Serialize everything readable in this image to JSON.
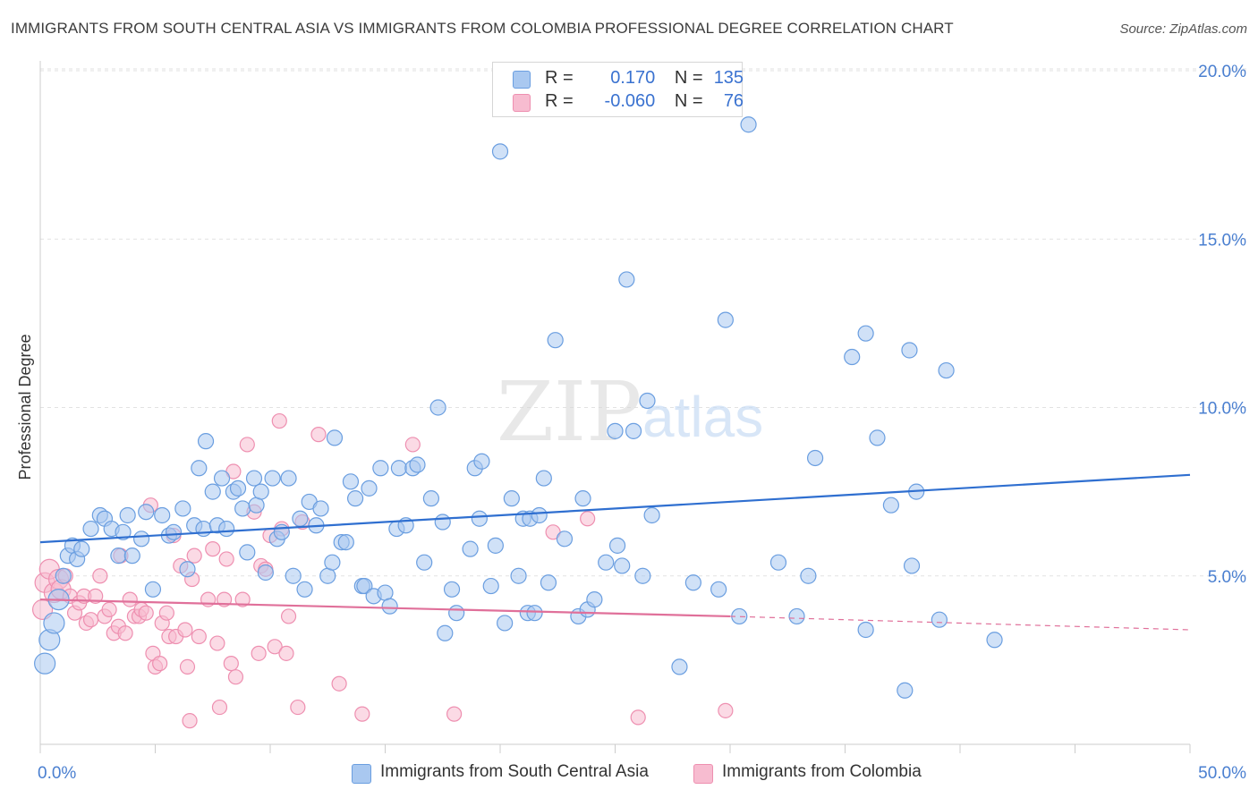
{
  "title": "IMMIGRANTS FROM SOUTH CENTRAL ASIA VS IMMIGRANTS FROM COLOMBIA PROFESSIONAL DEGREE CORRELATION CHART",
  "source": "Source: ZipAtlas.com",
  "watermark": {
    "zip": "ZIP",
    "atlas": "atlas"
  },
  "legend": {
    "r_label": "R =",
    "n_label": "N =",
    "series1": {
      "r": "0.170",
      "n": "135"
    },
    "series2": {
      "r": "-0.060",
      "n": "76"
    }
  },
  "colors": {
    "blue_fill": "#a9c8f0",
    "blue_stroke": "#6a9ee0",
    "blue_line": "#2f6fd0",
    "pink_fill": "#f7bcd0",
    "pink_stroke": "#ee8fb0",
    "pink_line": "#e0709a",
    "grid": "#e2e2e2",
    "tick_text": "#4a7fd0"
  },
  "chart_data": {
    "type": "scatter",
    "title": "IMMIGRANTS FROM SOUTH CENTRAL ASIA VS IMMIGRANTS FROM COLOMBIA PROFESSIONAL DEGREE CORRELATION CHART",
    "xlabel": "",
    "ylabel": "Professional Degree",
    "xlim": [
      0,
      50
    ],
    "ylim": [
      0,
      20
    ],
    "x_ticks_labels": [
      "0.0%",
      "50.0%"
    ],
    "y_ticks": [
      5,
      10,
      15,
      20
    ],
    "y_ticks_labels": [
      "5.0%",
      "10.0%",
      "15.0%",
      "20.0%"
    ],
    "series": [
      {
        "name": "Immigrants from South Central Asia",
        "color": "#6a9ee0",
        "r": 0.17,
        "n": 135,
        "trend": {
          "x": [
            0,
            50
          ],
          "y": [
            6.0,
            8.0
          ]
        },
        "points": [
          [
            0.2,
            2.4
          ],
          [
            0.4,
            3.1
          ],
          [
            0.6,
            3.6
          ],
          [
            0.8,
            4.3
          ],
          [
            1.0,
            5.0
          ],
          [
            1.2,
            5.6
          ],
          [
            1.4,
            5.9
          ],
          [
            1.6,
            5.5
          ],
          [
            1.8,
            5.8
          ],
          [
            2.2,
            6.4
          ],
          [
            2.6,
            6.8
          ],
          [
            2.8,
            6.7
          ],
          [
            3.1,
            6.4
          ],
          [
            3.4,
            5.6
          ],
          [
            3.6,
            6.3
          ],
          [
            3.8,
            6.8
          ],
          [
            4.0,
            5.6
          ],
          [
            4.4,
            6.1
          ],
          [
            4.6,
            6.9
          ],
          [
            4.9,
            4.6
          ],
          [
            5.3,
            6.8
          ],
          [
            5.6,
            6.2
          ],
          [
            5.8,
            6.3
          ],
          [
            6.2,
            7.0
          ],
          [
            6.4,
            5.2
          ],
          [
            6.7,
            6.5
          ],
          [
            6.9,
            8.2
          ],
          [
            7.1,
            6.4
          ],
          [
            7.2,
            9.0
          ],
          [
            7.5,
            7.5
          ],
          [
            7.7,
            6.5
          ],
          [
            7.9,
            7.9
          ],
          [
            8.1,
            6.4
          ],
          [
            8.4,
            7.5
          ],
          [
            8.6,
            7.6
          ],
          [
            8.8,
            7.0
          ],
          [
            9.0,
            5.7
          ],
          [
            9.3,
            7.9
          ],
          [
            9.4,
            7.1
          ],
          [
            9.6,
            7.5
          ],
          [
            9.8,
            5.1
          ],
          [
            10.1,
            7.9
          ],
          [
            10.3,
            6.1
          ],
          [
            10.5,
            6.3
          ],
          [
            10.8,
            7.9
          ],
          [
            11.0,
            5.0
          ],
          [
            11.3,
            6.7
          ],
          [
            11.5,
            4.6
          ],
          [
            11.7,
            7.2
          ],
          [
            12.0,
            6.5
          ],
          [
            12.2,
            7.0
          ],
          [
            12.5,
            5.0
          ],
          [
            12.7,
            5.4
          ],
          [
            12.8,
            9.1
          ],
          [
            13.1,
            6.0
          ],
          [
            13.3,
            6.0
          ],
          [
            13.5,
            7.8
          ],
          [
            13.7,
            7.3
          ],
          [
            14.0,
            4.7
          ],
          [
            14.1,
            4.7
          ],
          [
            14.3,
            7.6
          ],
          [
            14.5,
            4.4
          ],
          [
            14.8,
            8.2
          ],
          [
            15.0,
            4.5
          ],
          [
            15.2,
            4.1
          ],
          [
            15.6,
            8.2
          ],
          [
            15.5,
            6.4
          ],
          [
            15.9,
            6.5
          ],
          [
            16.2,
            8.2
          ],
          [
            16.4,
            8.3
          ],
          [
            16.7,
            5.4
          ],
          [
            17.0,
            7.3
          ],
          [
            17.3,
            10.0
          ],
          [
            17.5,
            6.6
          ],
          [
            17.6,
            3.3
          ],
          [
            17.9,
            4.6
          ],
          [
            18.1,
            3.9
          ],
          [
            18.7,
            5.8
          ],
          [
            18.9,
            8.2
          ],
          [
            19.1,
            6.7
          ],
          [
            19.2,
            8.4
          ],
          [
            19.6,
            4.7
          ],
          [
            19.8,
            5.9
          ],
          [
            20.0,
            17.6
          ],
          [
            20.2,
            3.6
          ],
          [
            20.5,
            7.3
          ],
          [
            20.8,
            5.0
          ],
          [
            21.0,
            6.7
          ],
          [
            21.2,
            3.9
          ],
          [
            21.3,
            6.7
          ],
          [
            21.5,
            3.9
          ],
          [
            21.7,
            6.8
          ],
          [
            21.9,
            7.9
          ],
          [
            22.1,
            4.8
          ],
          [
            22.4,
            12.0
          ],
          [
            22.8,
            6.1
          ],
          [
            23.4,
            3.8
          ],
          [
            23.6,
            7.3
          ],
          [
            23.8,
            4.0
          ],
          [
            24.1,
            4.3
          ],
          [
            24.6,
            5.4
          ],
          [
            25.0,
            9.3
          ],
          [
            25.1,
            5.9
          ],
          [
            25.3,
            5.3
          ],
          [
            25.5,
            13.8
          ],
          [
            25.8,
            9.3
          ],
          [
            26.2,
            5.0
          ],
          [
            26.4,
            10.2
          ],
          [
            26.6,
            6.8
          ],
          [
            27.8,
            2.3
          ],
          [
            28.4,
            4.8
          ],
          [
            29.5,
            4.6
          ],
          [
            29.8,
            12.6
          ],
          [
            30.4,
            3.8
          ],
          [
            30.8,
            18.4
          ],
          [
            32.1,
            5.4
          ],
          [
            32.9,
            3.8
          ],
          [
            33.4,
            5.0
          ],
          [
            33.7,
            8.5
          ],
          [
            35.3,
            11.5
          ],
          [
            35.9,
            3.4
          ],
          [
            35.9,
            12.2
          ],
          [
            36.4,
            9.1
          ],
          [
            37.0,
            7.1
          ],
          [
            37.6,
            1.6
          ],
          [
            37.8,
            11.7
          ],
          [
            37.9,
            5.3
          ],
          [
            38.1,
            7.5
          ],
          [
            39.1,
            3.7
          ],
          [
            39.4,
            11.1
          ],
          [
            41.5,
            3.1
          ]
        ]
      },
      {
        "name": "Immigrants from Colombia",
        "color": "#ee8fb0",
        "r": -0.06,
        "n": 76,
        "trend": {
          "x": [
            0,
            30
          ],
          "y": [
            4.3,
            3.8
          ]
        },
        "trend_dashed": {
          "x": [
            30,
            50
          ],
          "y": [
            3.8,
            3.4
          ]
        },
        "points": [
          [
            0.1,
            4.0
          ],
          [
            0.2,
            4.8
          ],
          [
            0.4,
            5.2
          ],
          [
            0.6,
            4.5
          ],
          [
            0.8,
            4.9
          ],
          [
            0.9,
            4.6
          ],
          [
            1.1,
            5.0
          ],
          [
            1.3,
            4.4
          ],
          [
            1.5,
            3.9
          ],
          [
            1.7,
            4.2
          ],
          [
            1.9,
            4.4
          ],
          [
            2.0,
            3.6
          ],
          [
            2.2,
            3.7
          ],
          [
            2.4,
            4.4
          ],
          [
            2.6,
            5.0
          ],
          [
            2.8,
            3.8
          ],
          [
            3.0,
            4.0
          ],
          [
            3.2,
            3.3
          ],
          [
            3.4,
            3.5
          ],
          [
            3.5,
            5.6
          ],
          [
            3.7,
            3.3
          ],
          [
            3.9,
            4.3
          ],
          [
            4.1,
            3.8
          ],
          [
            4.3,
            3.8
          ],
          [
            4.4,
            4.0
          ],
          [
            4.6,
            3.9
          ],
          [
            4.8,
            7.1
          ],
          [
            4.9,
            2.7
          ],
          [
            5.0,
            2.3
          ],
          [
            5.2,
            2.4
          ],
          [
            5.3,
            3.6
          ],
          [
            5.5,
            3.9
          ],
          [
            5.6,
            3.2
          ],
          [
            5.8,
            6.2
          ],
          [
            5.9,
            3.2
          ],
          [
            6.1,
            5.3
          ],
          [
            6.3,
            3.4
          ],
          [
            6.4,
            2.3
          ],
          [
            6.5,
            0.7
          ],
          [
            6.6,
            4.9
          ],
          [
            6.7,
            5.6
          ],
          [
            6.9,
            3.2
          ],
          [
            7.3,
            4.3
          ],
          [
            7.5,
            5.8
          ],
          [
            7.7,
            3.0
          ],
          [
            7.8,
            1.1
          ],
          [
            8.0,
            4.3
          ],
          [
            8.1,
            5.5
          ],
          [
            8.3,
            2.4
          ],
          [
            8.4,
            8.1
          ],
          [
            8.5,
            2.0
          ],
          [
            8.8,
            4.3
          ],
          [
            9.0,
            8.9
          ],
          [
            9.3,
            6.9
          ],
          [
            9.5,
            2.7
          ],
          [
            9.6,
            5.3
          ],
          [
            9.8,
            5.2
          ],
          [
            10.0,
            6.2
          ],
          [
            10.2,
            2.9
          ],
          [
            10.4,
            9.6
          ],
          [
            10.5,
            6.4
          ],
          [
            10.7,
            2.7
          ],
          [
            10.8,
            3.8
          ],
          [
            11.2,
            1.1
          ],
          [
            11.4,
            6.6
          ],
          [
            12.1,
            9.2
          ],
          [
            13.0,
            1.8
          ],
          [
            14.0,
            0.9
          ],
          [
            16.2,
            8.9
          ],
          [
            18.0,
            0.9
          ],
          [
            22.3,
            6.3
          ],
          [
            23.8,
            6.7
          ],
          [
            26.0,
            0.8
          ],
          [
            29.8,
            1.0
          ]
        ]
      }
    ]
  },
  "bottom_legend": {
    "item1": "Immigrants from South Central Asia",
    "item2": "Immigrants from Colombia"
  }
}
